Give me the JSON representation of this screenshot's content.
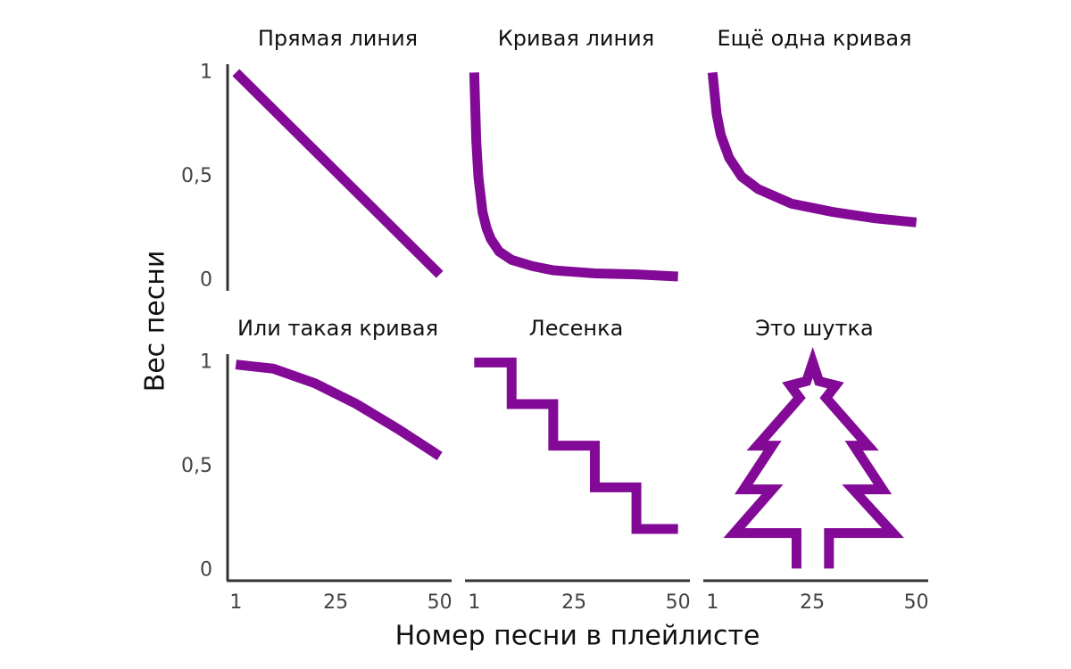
{
  "axes_labels": {
    "xlabel": "Номер песни в плейлисте",
    "ylabel": "Вес песни"
  },
  "chart_data": [
    {
      "type": "line",
      "title": "Прямая линия",
      "color": "#830a96",
      "x": [
        1,
        50
      ],
      "values": [
        1,
        0.03
      ],
      "xlim": [
        -1,
        52
      ],
      "ylim": [
        -0.04,
        1.04
      ],
      "yticks": [
        0,
        {
          "value": 0.5,
          "label": "0,5"
        },
        1
      ]
    },
    {
      "type": "line",
      "title": "Кривая линия",
      "color": "#830a96",
      "x": [
        1,
        1.5,
        2,
        3,
        4,
        5,
        7,
        10,
        15,
        20,
        30,
        40,
        50
      ],
      "values": [
        1,
        0.67,
        0.5,
        0.33,
        0.25,
        0.2,
        0.14,
        0.1,
        0.07,
        0.05,
        0.035,
        0.03,
        0.02
      ],
      "xlim": [
        -1,
        52
      ],
      "ylim": [
        -0.04,
        1.04
      ]
    },
    {
      "type": "line",
      "title": "Ещё одна кривая",
      "color": "#830a96",
      "x": [
        1,
        2,
        3,
        5,
        8,
        12,
        20,
        30,
        40,
        50
      ],
      "values": [
        1,
        0.8,
        0.7,
        0.59,
        0.5,
        0.44,
        0.37,
        0.33,
        0.3,
        0.28
      ],
      "xlim": [
        -1,
        52
      ],
      "ylim": [
        -0.04,
        1.04
      ]
    },
    {
      "type": "line",
      "title": "Или такая кривая",
      "color": "#830a96",
      "x": [
        1,
        10,
        20,
        30,
        40,
        50
      ],
      "values": [
        0.99,
        0.97,
        0.9,
        0.8,
        0.68,
        0.55
      ],
      "xlim": [
        -1,
        52
      ],
      "ylim": [
        -0.04,
        1.04
      ],
      "xticks": [
        1,
        25,
        50
      ],
      "yticks": [
        0,
        {
          "value": 0.5,
          "label": "0,5"
        },
        1
      ]
    },
    {
      "type": "line",
      "title": "Лесенка",
      "color": "#830a96",
      "x": [
        1,
        10,
        10,
        20,
        20,
        30,
        30,
        40,
        40,
        50
      ],
      "values": [
        1,
        1,
        0.8,
        0.8,
        0.6,
        0.6,
        0.4,
        0.4,
        0.2,
        0.2
      ],
      "xlim": [
        -1,
        52
      ],
      "ylim": [
        -0.04,
        1.04
      ],
      "xticks": [
        1,
        25,
        50
      ]
    },
    {
      "type": "line",
      "title": "Это шутка",
      "color": "#830a96",
      "x": [
        21.2,
        21.2,
        6.2,
        15.4,
        8.5,
        15.4,
        11.8,
        21.9,
        19.7,
        23.6,
        25.1,
        26.6,
        30.6,
        28.3,
        38.4,
        35,
        41.9,
        34.8,
        44.4,
        29,
        29
      ],
      "values": [
        0.01,
        0.18,
        0.18,
        0.39,
        0.39,
        0.6,
        0.6,
        0.83,
        0.89,
        0.91,
        1.0,
        0.91,
        0.89,
        0.83,
        0.6,
        0.6,
        0.39,
        0.39,
        0.18,
        0.18,
        0.01
      ],
      "xlim": [
        -1,
        52
      ],
      "ylim": [
        -0.04,
        1.04
      ],
      "xticks": [
        1,
        25,
        50
      ]
    }
  ]
}
